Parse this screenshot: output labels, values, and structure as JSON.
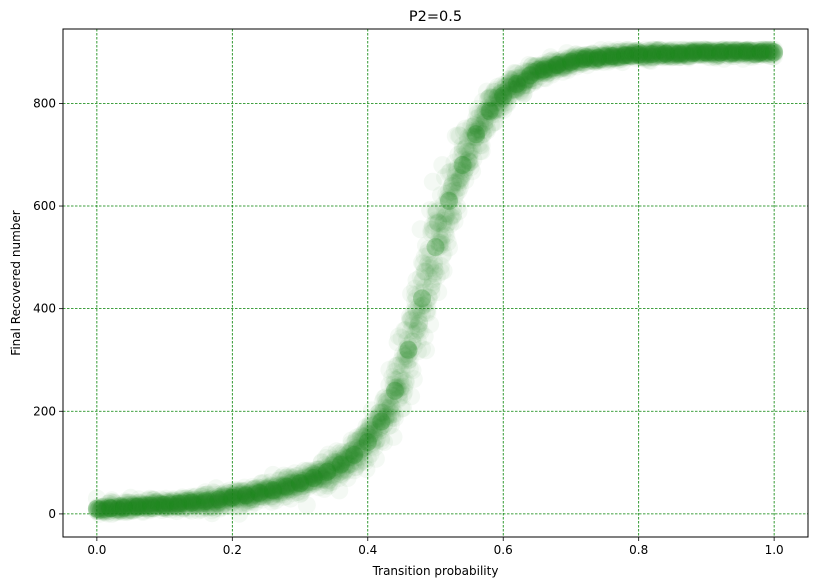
{
  "chart_data": {
    "type": "scatter",
    "title": "P2=0.5",
    "xlabel": "Transition probability",
    "ylabel": "Final Recovered number",
    "xlim": [
      -0.05,
      1.05
    ],
    "ylim": [
      -45,
      945
    ],
    "xticks": [
      0.0,
      0.2,
      0.4,
      0.6,
      0.8,
      1.0
    ],
    "xtick_labels": [
      "0.0",
      "0.2",
      "0.4",
      "0.6",
      "0.8",
      "1.0"
    ],
    "yticks": [
      0,
      200,
      400,
      600,
      800
    ],
    "ytick_labels": [
      "0",
      "200",
      "400",
      "600",
      "800"
    ],
    "grid": true,
    "grid_color": "#008000",
    "marker_color": "#228b22",
    "marker_alpha": 0.05,
    "series": [
      {
        "points": [
          [
            0.0,
            10
          ],
          [
            0.02,
            11
          ],
          [
            0.04,
            12
          ],
          [
            0.06,
            14
          ],
          [
            0.08,
            16
          ],
          [
            0.1,
            18
          ],
          [
            0.12,
            20
          ],
          [
            0.14,
            22
          ],
          [
            0.16,
            25
          ],
          [
            0.18,
            28
          ],
          [
            0.2,
            32
          ],
          [
            0.22,
            36
          ],
          [
            0.24,
            41
          ],
          [
            0.26,
            46
          ],
          [
            0.28,
            53
          ],
          [
            0.3,
            60
          ],
          [
            0.32,
            70
          ],
          [
            0.34,
            82
          ],
          [
            0.36,
            96
          ],
          [
            0.38,
            115
          ],
          [
            0.4,
            140
          ],
          [
            0.42,
            180
          ],
          [
            0.44,
            240
          ],
          [
            0.46,
            320
          ],
          [
            0.48,
            420
          ],
          [
            0.5,
            520
          ],
          [
            0.52,
            610
          ],
          [
            0.54,
            680
          ],
          [
            0.56,
            740
          ],
          [
            0.58,
            785
          ],
          [
            0.6,
            815
          ],
          [
            0.62,
            838
          ],
          [
            0.64,
            855
          ],
          [
            0.66,
            866
          ],
          [
            0.68,
            875
          ],
          [
            0.7,
            881
          ],
          [
            0.72,
            886
          ],
          [
            0.74,
            889
          ],
          [
            0.76,
            892
          ],
          [
            0.78,
            894
          ],
          [
            0.8,
            895
          ],
          [
            0.82,
            896
          ],
          [
            0.84,
            897
          ],
          [
            0.86,
            898
          ],
          [
            0.88,
            898
          ],
          [
            0.9,
            899
          ],
          [
            0.92,
            899
          ],
          [
            0.94,
            899
          ],
          [
            0.96,
            900
          ],
          [
            0.98,
            900
          ],
          [
            1.0,
            900
          ]
        ]
      }
    ]
  }
}
